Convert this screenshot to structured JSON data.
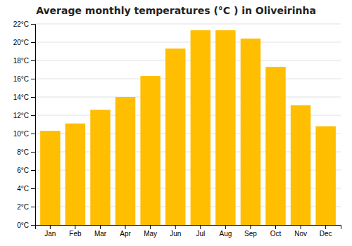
{
  "chart_data": {
    "type": "bar",
    "title": "Average monthly temperatures (°C ) in Oliveirinha",
    "categories": [
      "Jan",
      "Feb",
      "Mar",
      "Apr",
      "May",
      "Jun",
      "Jul",
      "Aug",
      "Sep",
      "Oct",
      "Nov",
      "Dec"
    ],
    "values": [
      10.3,
      11.1,
      12.6,
      14.0,
      16.3,
      19.3,
      21.3,
      21.3,
      20.4,
      17.3,
      13.1,
      10.8
    ],
    "color": "#FFBE00",
    "ylim": [
      0,
      22
    ],
    "yticks": [
      {
        "value": 0,
        "label": "0°C"
      },
      {
        "value": 2,
        "label": "2°C"
      },
      {
        "value": 4,
        "label": "4°C"
      },
      {
        "value": 6,
        "label": "6°C"
      },
      {
        "value": 8,
        "label": "8°C"
      },
      {
        "value": 10,
        "label": "10°C"
      },
      {
        "value": 12,
        "label": "12°C"
      },
      {
        "value": 14,
        "label": "14°C"
      },
      {
        "value": 16,
        "label": "16°C"
      },
      {
        "value": 18,
        "label": "18°C"
      },
      {
        "value": 20,
        "label": "20°C"
      },
      {
        "value": 22,
        "label": "22°C"
      }
    ],
    "grid": true
  }
}
